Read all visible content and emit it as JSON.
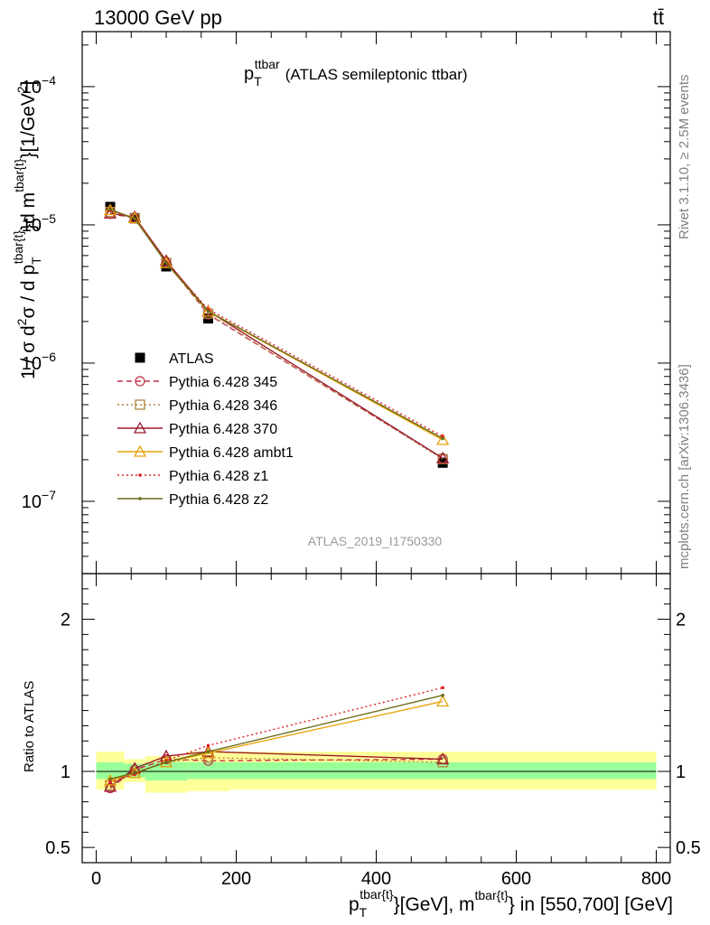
{
  "header": {
    "left": "13000 GeV pp",
    "right": "tt̄"
  },
  "side_labels": {
    "rivet": "Rivet 3.1.10, ≥ 2.5M events",
    "mcplots": "mcplots.cern.ch [arXiv:1306.3436]"
  },
  "title": {
    "main": "p",
    "sub": "T",
    "sup": "ttbar",
    "rest": "(ATLAS semileptonic ttbar)"
  },
  "watermark": "ATLAS_2019_I1750330",
  "ylabel": {
    "part1": "1 / σ d",
    "sup2a": "2",
    "part2": "σ /  d p",
    "supT": "tbar{t}",
    "subT": "T",
    "part3": "}d m",
    "supM": "tbar{t}",
    "part4": "}[1/GeV",
    "sup2b": "2",
    "part5": "]"
  },
  "ratio_ylabel": "Ratio to ATLAS",
  "xlabel": {
    "p": "p",
    "sub": "T",
    "sup1": "tbar{t}",
    "mid": "}[GeV], m",
    "sup2": "tbar{t}",
    "end": "} in [550,700] [GeV]"
  },
  "chart_data": [
    {
      "type": "line",
      "panel": "main",
      "y_scale": "log",
      "ylim": [
        3e-08,
        0.00025
      ],
      "xlim": [
        -20,
        820
      ],
      "y_ticks": [
        {
          "value": 1e-07,
          "mant": "10",
          "exp": "−7"
        },
        {
          "value": 1e-06,
          "mant": "10",
          "exp": "−6"
        },
        {
          "value": 1e-05,
          "mant": "10",
          "exp": "−5"
        },
        {
          "value": 0.0001,
          "mant": "10",
          "exp": "−4"
        }
      ],
      "x": [
        20,
        55,
        100,
        160,
        495
      ],
      "series": [
        {
          "name": "ATLAS",
          "color": "#000000",
          "style": "data",
          "values": [
            1.35e-05,
            1.12e-05,
            5e-06,
            2.1e-06,
            1.9e-07
          ]
        },
        {
          "name": "Pythia 6.428 345",
          "color": "#c0334a",
          "style": "dashed",
          "marker": "circle",
          "values": [
            1.2e-05,
            1.13e-05,
            5.4e-06,
            2.25e-06,
            2.05e-07
          ]
        },
        {
          "name": "Pythia 6.428 346",
          "color": "#b08340",
          "style": "dotted",
          "marker": "square",
          "values": [
            1.24e-05,
            1.11e-05,
            5.3e-06,
            2.28e-06,
            2.02e-07
          ]
        },
        {
          "name": "Pythia 6.428 370",
          "color": "#9b1a2a",
          "style": "solid",
          "marker": "triangle",
          "values": [
            1.21e-05,
            1.14e-05,
            5.5e-06,
            2.38e-06,
            2.05e-07
          ]
        },
        {
          "name": "Pythia 6.428 ambt1",
          "color": "#e8a30c",
          "style": "solid",
          "marker": "triangle",
          "values": [
            1.28e-05,
            1.12e-05,
            5.3e-06,
            2.36e-06,
            2.78e-07
          ]
        },
        {
          "name": "Pythia 6.428 z1",
          "color": "#e02020",
          "style": "dotted",
          "marker": "dot",
          "values": [
            1.27e-05,
            1.11e-05,
            5.35e-06,
            2.45e-06,
            2.95e-07
          ]
        },
        {
          "name": "Pythia 6.428 z2",
          "color": "#6b6b1a",
          "style": "solid",
          "marker": "dot",
          "values": [
            1.29e-05,
            1.11e-05,
            5.3e-06,
            2.37e-06,
            2.85e-07
          ]
        }
      ]
    },
    {
      "type": "line",
      "panel": "ratio",
      "ylim": [
        0.4,
        2.3
      ],
      "xlim": [
        -20,
        820
      ],
      "y_ticks": [
        {
          "value": 0.5,
          "label": "0.5"
        },
        {
          "value": 1,
          "label": "1"
        },
        {
          "value": 2,
          "label": "2"
        }
      ],
      "x_ticks": [
        {
          "value": 0,
          "label": "0"
        },
        {
          "value": 200,
          "label": "200"
        },
        {
          "value": 400,
          "label": "400"
        },
        {
          "value": 600,
          "label": "600"
        },
        {
          "value": 800,
          "label": "800"
        }
      ],
      "bands": [
        {
          "x0": 0,
          "x1": 40,
          "yellow": [
            0.88,
            1.13
          ],
          "green": [
            0.95,
            1.06
          ]
        },
        {
          "x0": 40,
          "x1": 70,
          "yellow": [
            0.93,
            1.08
          ],
          "green": [
            0.96,
            1.05
          ]
        },
        {
          "x0": 70,
          "x1": 130,
          "yellow": [
            0.86,
            1.1
          ],
          "green": [
            0.94,
            1.06
          ]
        },
        {
          "x0": 130,
          "x1": 190,
          "yellow": [
            0.87,
            1.13
          ],
          "green": [
            0.95,
            1.06
          ]
        },
        {
          "x0": 190,
          "x1": 800,
          "yellow": [
            0.88,
            1.13
          ],
          "green": [
            0.95,
            1.06
          ]
        }
      ],
      "x": [
        20,
        55,
        100,
        160,
        495
      ],
      "series": [
        {
          "name": "Pythia 6.428 345",
          "color": "#c0334a",
          "style": "dashed",
          "marker": "circle",
          "values": [
            0.89,
            1.01,
            1.08,
            1.07,
            1.08
          ]
        },
        {
          "name": "Pythia 6.428 346",
          "color": "#b08340",
          "style": "dotted",
          "marker": "square",
          "values": [
            0.91,
            0.99,
            1.06,
            1.09,
            1.06
          ]
        },
        {
          "name": "Pythia 6.428 370",
          "color": "#9b1a2a",
          "style": "solid",
          "marker": "triangle",
          "values": [
            0.9,
            1.02,
            1.1,
            1.13,
            1.08
          ]
        },
        {
          "name": "Pythia 6.428 ambt1",
          "color": "#e8a30c",
          "style": "solid",
          "marker": "triangle",
          "values": [
            0.94,
            0.99,
            1.06,
            1.12,
            1.46
          ]
        },
        {
          "name": "Pythia 6.428 z1",
          "color": "#e02020",
          "style": "dotted",
          "marker": "dot",
          "values": [
            0.93,
            0.98,
            1.07,
            1.17,
            1.55
          ]
        },
        {
          "name": "Pythia 6.428 z2",
          "color": "#6b6b1a",
          "style": "solid",
          "marker": "dot",
          "values": [
            0.95,
            0.99,
            1.06,
            1.13,
            1.5
          ]
        }
      ]
    }
  ]
}
